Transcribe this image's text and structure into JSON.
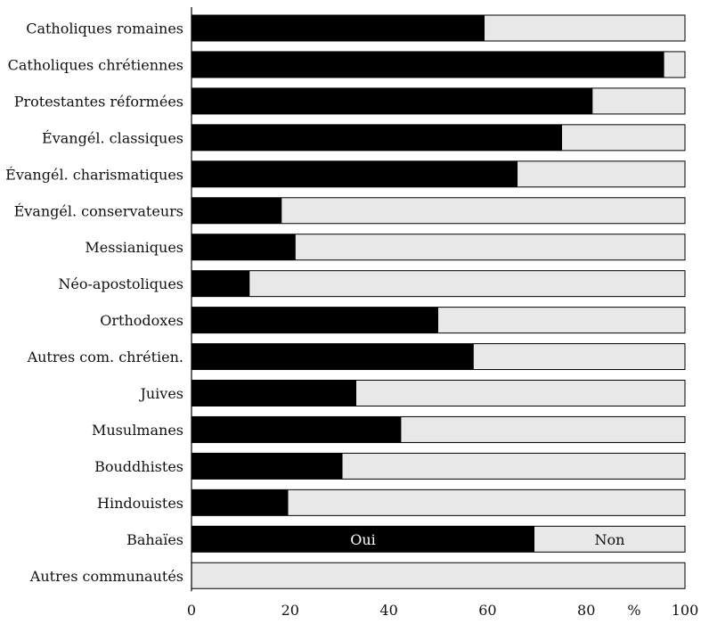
{
  "chart_data": {
    "type": "bar",
    "orientation": "horizontal",
    "stacked": true,
    "categories": [
      "Catholiques romaines",
      "Catholiques chrétiennes",
      "Protestantes réformées",
      "Évangél. classiques",
      "Évangél. charismatiques",
      "Évangél. conservateurs",
      "Messianiques",
      "Néo-apostoliques",
      "Orthodoxes",
      "Autres com. chrétien.",
      "Juives",
      "Musulmanes",
      "Bouddhistes",
      "Hindouistes",
      "Bahaïes",
      "Autres communautés"
    ],
    "series": [
      {
        "name": "Oui",
        "color": "#000000",
        "values": [
          59.4,
          95.8,
          81.3,
          75.1,
          66.1,
          18.3,
          21.1,
          11.8,
          50.0,
          57.2,
          33.4,
          42.5,
          30.6,
          19.6,
          69.5,
          0.0
        ]
      },
      {
        "name": "Non",
        "color": "#e8e8e8",
        "values": [
          40.6,
          4.2,
          18.7,
          24.9,
          33.9,
          81.7,
          78.9,
          88.2,
          50.0,
          42.8,
          66.6,
          57.5,
          69.4,
          80.4,
          30.5,
          100.0
        ]
      }
    ],
    "xlim": [
      0,
      100
    ],
    "xticks": [
      "0",
      "20",
      "40",
      "60",
      "80",
      "100"
    ],
    "xlabel": "%",
    "grid": false,
    "legend": "inside the Bahaïes bar"
  }
}
